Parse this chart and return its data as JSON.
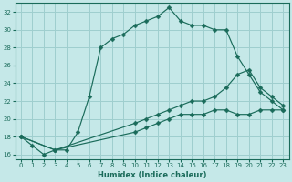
{
  "xlabel": "Humidex (Indice chaleur)",
  "bg_color": "#c5e8e8",
  "grid_color": "#9ecece",
  "line_color": "#1a6b5a",
  "ylim": [
    15.5,
    33.0
  ],
  "xlim": [
    -0.5,
    23.5
  ],
  "yticks": [
    16,
    18,
    20,
    22,
    24,
    26,
    28,
    30,
    32
  ],
  "xticks": [
    0,
    1,
    2,
    3,
    4,
    5,
    6,
    7,
    8,
    9,
    10,
    11,
    12,
    13,
    14,
    15,
    16,
    17,
    18,
    19,
    20,
    21,
    22,
    23
  ],
  "line1_x": [
    0,
    1,
    2,
    3,
    4,
    5,
    6,
    7,
    8,
    9,
    10,
    11,
    12,
    13,
    14,
    15,
    16,
    17,
    18,
    19,
    20,
    21,
    22,
    23
  ],
  "line1_y": [
    18,
    17,
    16,
    16.5,
    16.5,
    18.5,
    22.5,
    28,
    29.0,
    29.5,
    30.5,
    31.0,
    31.5,
    32.5,
    31.0,
    30.5,
    30.5,
    30.0,
    30.0,
    27.0,
    25.0,
    23.0,
    22.0,
    21.0
  ],
  "line2_x": [
    0,
    3,
    10,
    11,
    12,
    13,
    14,
    15,
    16,
    17,
    18,
    19,
    20,
    21,
    22,
    23
  ],
  "line2_y": [
    18,
    16.5,
    19.5,
    20.0,
    20.5,
    21.0,
    21.5,
    22.0,
    22.0,
    22.5,
    23.5,
    25.0,
    25.5,
    23.5,
    22.5,
    21.5
  ],
  "line3_x": [
    0,
    3,
    10,
    11,
    12,
    13,
    14,
    15,
    16,
    17,
    18,
    19,
    20,
    21,
    22,
    23
  ],
  "line3_y": [
    18,
    16.5,
    18.5,
    19.0,
    19.5,
    20.0,
    20.5,
    20.5,
    20.5,
    21.0,
    21.0,
    20.5,
    20.5,
    21.0,
    21.0,
    21.0
  ]
}
